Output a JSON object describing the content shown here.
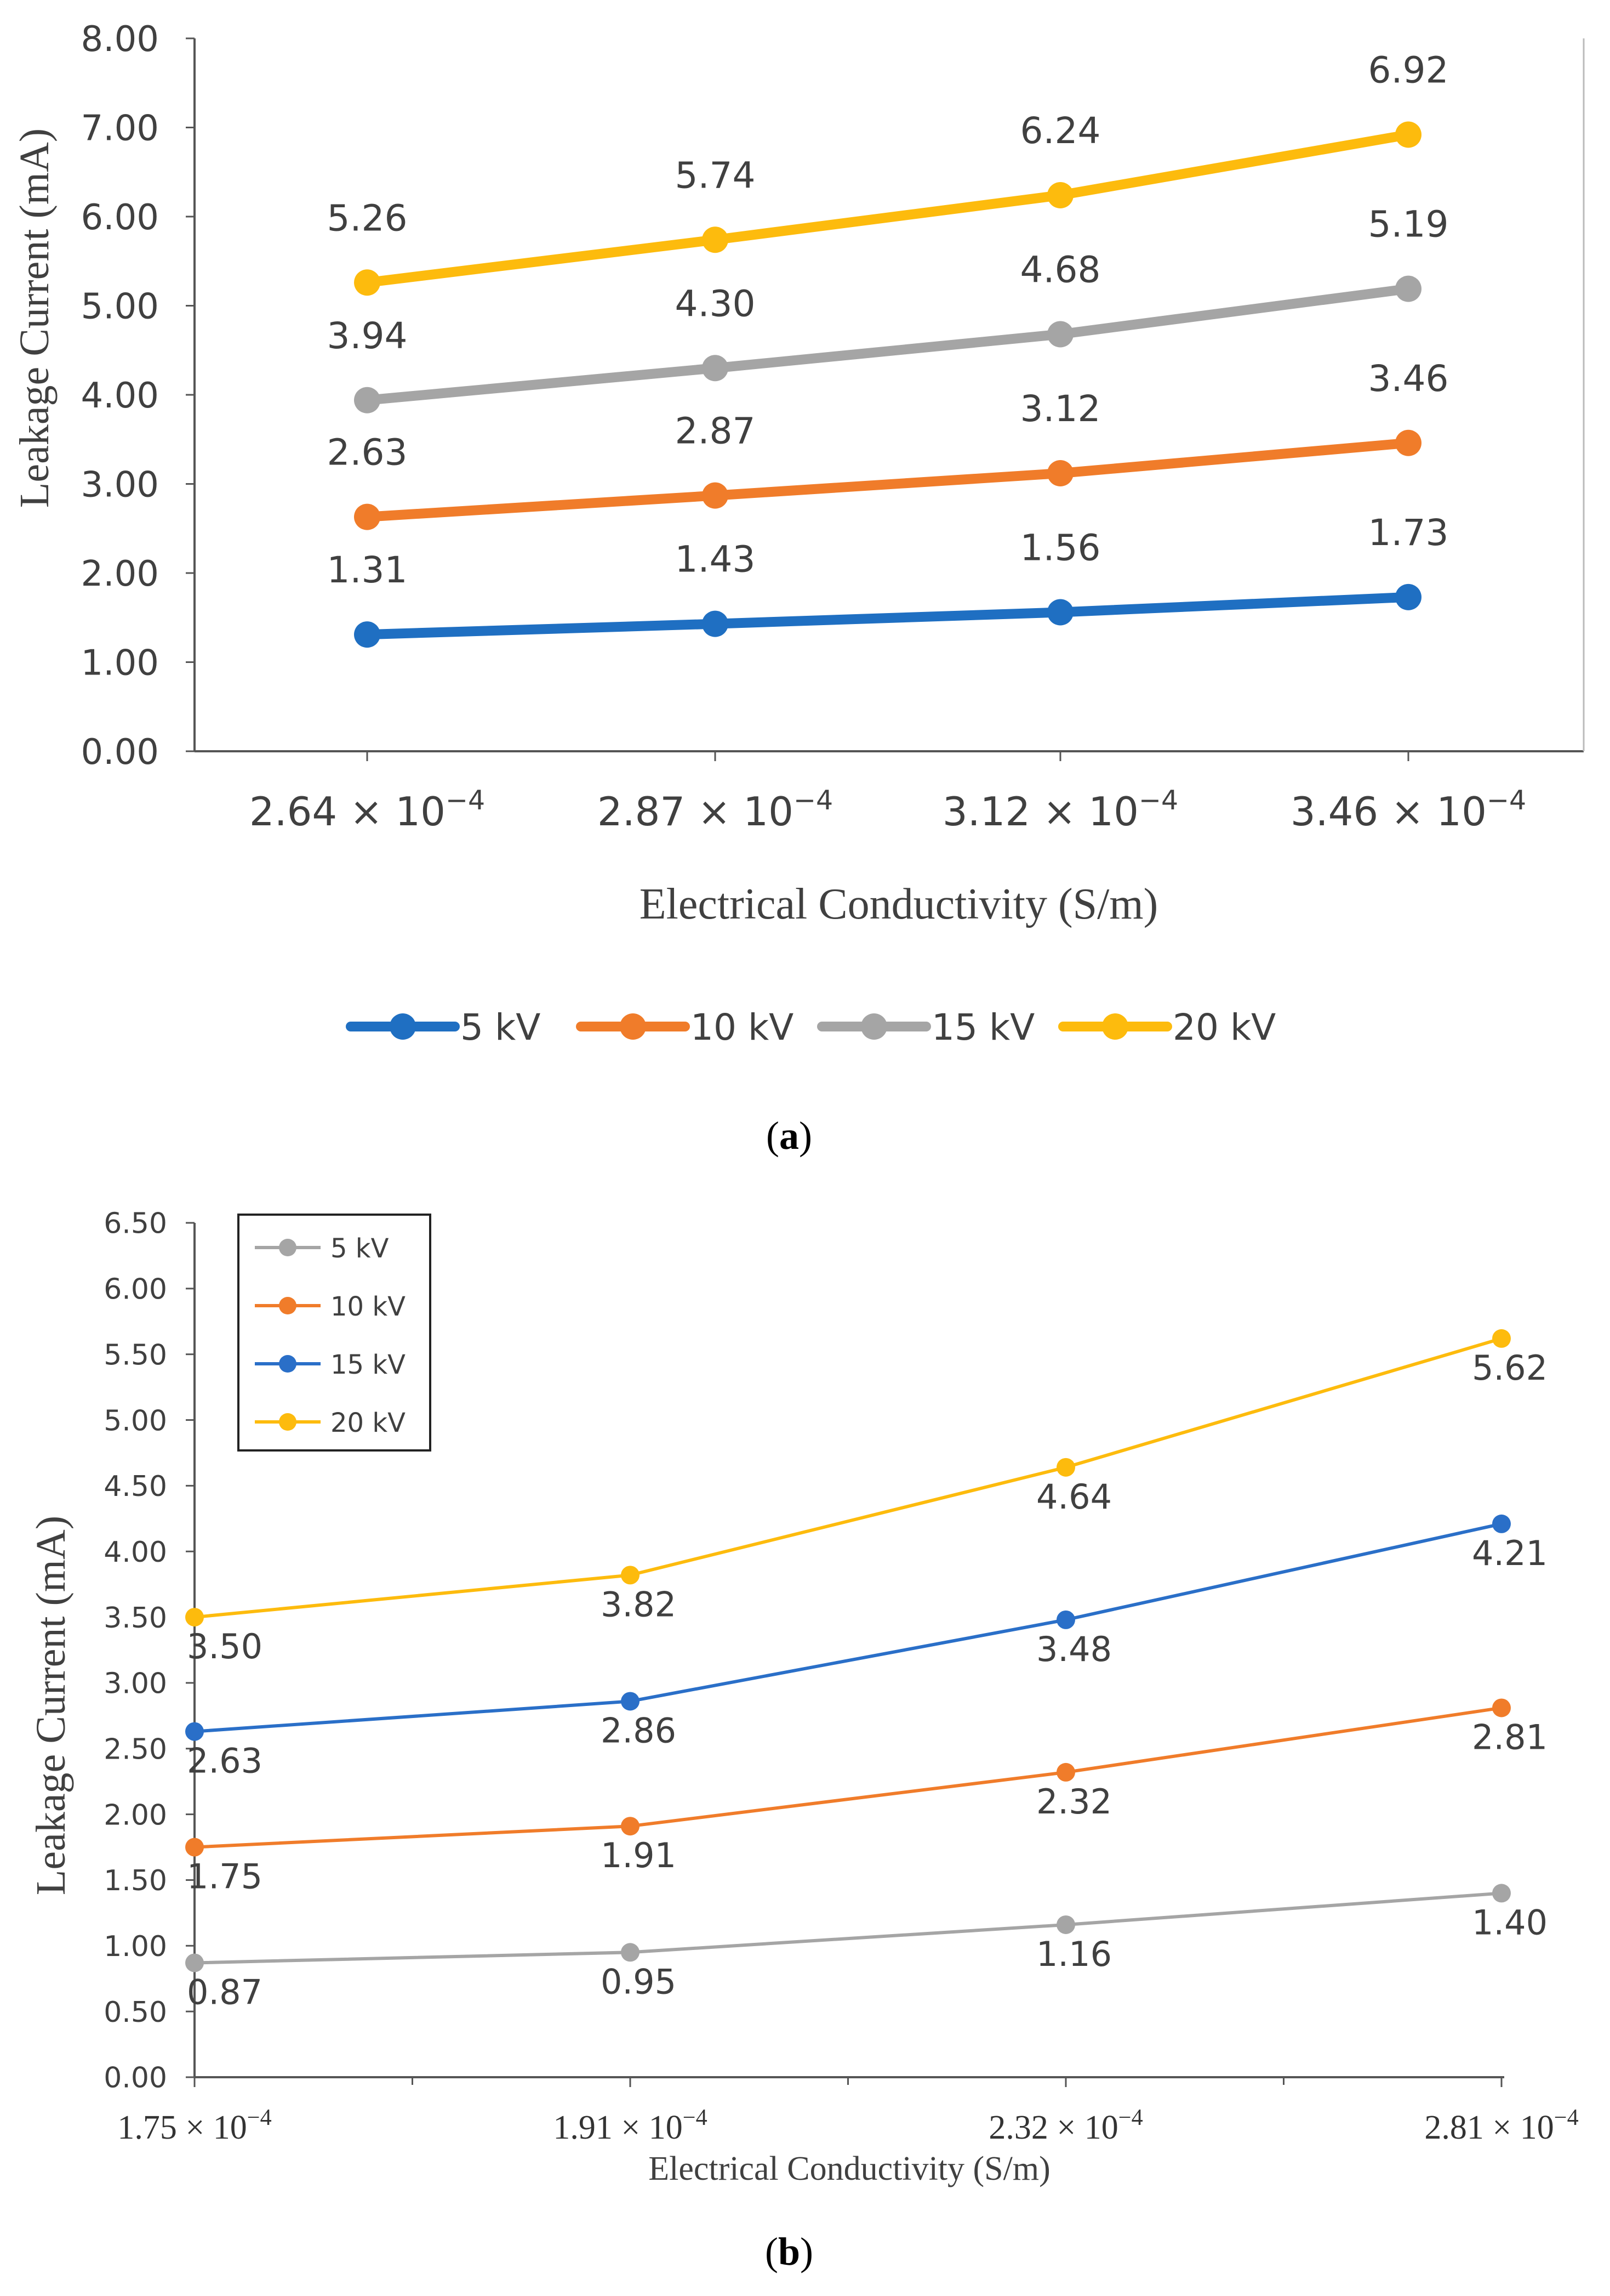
{
  "chart_data": [
    {
      "panel": "a",
      "type": "line",
      "caption": "(a)",
      "xlabel": "Electrical Conductivity (S/m)",
      "ylabel": "Leakage Current (mA)",
      "categories": [
        {
          "mantissa": "2.64",
          "times": "×",
          "base": "10",
          "exp": "−4"
        },
        {
          "mantissa": "2.87",
          "times": "×",
          "base": "10",
          "exp": "−4"
        },
        {
          "mantissa": "3.12",
          "times": "×",
          "base": "10",
          "exp": "−4"
        },
        {
          "mantissa": "3.46",
          "times": "×",
          "base": "10",
          "exp": "−4"
        }
      ],
      "x_values": [
        0.000264,
        0.000287,
        0.000312,
        0.000346
      ],
      "ylim": [
        0,
        8
      ],
      "yticks": [
        "0.00",
        "1.00",
        "2.00",
        "3.00",
        "4.00",
        "5.00",
        "6.00",
        "7.00",
        "8.00"
      ],
      "grid": false,
      "legend_position": "bottom",
      "label_position": "above",
      "series": [
        {
          "name": "5 kV",
          "color": "#1f6fc2",
          "values": [
            1.31,
            1.43,
            1.56,
            1.73
          ],
          "labels": [
            "1.31",
            "1.43",
            "1.56",
            "1.73"
          ]
        },
        {
          "name": "10 kV",
          "color": "#f07c2a",
          "values": [
            2.63,
            2.87,
            3.12,
            3.46
          ],
          "labels": [
            "2.63",
            "2.87",
            "3.12",
            "3.46"
          ]
        },
        {
          "name": "15 kV",
          "color": "#a5a5a5",
          "values": [
            3.94,
            4.3,
            4.68,
            5.19
          ],
          "labels": [
            "3.94",
            "4.30",
            "4.68",
            "5.19"
          ]
        },
        {
          "name": "20 kV",
          "color": "#fdbb0d",
          "values": [
            5.26,
            5.74,
            6.24,
            6.92
          ],
          "labels": [
            "5.26",
            "5.74",
            "6.24",
            "6.92"
          ]
        }
      ]
    },
    {
      "panel": "b",
      "type": "line",
      "caption": "(b)",
      "xlabel": "Electrical Conductivity (S/m)",
      "ylabel": "Leakage Current (mA)",
      "categories": [
        {
          "mantissa": "1.75",
          "times": "×",
          "base": "10",
          "exp": "−4"
        },
        {
          "mantissa": "1.91",
          "times": "×",
          "base": "10",
          "exp": "−4"
        },
        {
          "mantissa": "2.32",
          "times": "×",
          "base": "10",
          "exp": "−4"
        },
        {
          "mantissa": "2.81",
          "times": "×",
          "base": "10",
          "exp": "−4"
        }
      ],
      "x_values": [
        0.000175,
        0.000191,
        0.000232,
        0.000281
      ],
      "ylim": [
        0,
        6.5
      ],
      "yticks": [
        "0.00",
        "0.50",
        "1.00",
        "1.50",
        "2.00",
        "2.50",
        "3.00",
        "3.50",
        "4.00",
        "4.50",
        "5.00",
        "5.50",
        "6.00",
        "6.50"
      ],
      "grid": false,
      "legend_position": "top-left",
      "label_position": "below",
      "series": [
        {
          "name": "5 kV",
          "color": "#a5a5a5",
          "values": [
            0.87,
            0.95,
            1.16,
            1.4
          ],
          "labels": [
            "0.87",
            "0.95",
            "1.16",
            "1.40"
          ]
        },
        {
          "name": "10 kV",
          "color": "#f07c2a",
          "values": [
            1.75,
            1.91,
            2.32,
            2.81
          ],
          "labels": [
            "1.75",
            "1.91",
            "2.32",
            "2.81"
          ]
        },
        {
          "name": "15 kV",
          "color": "#2a6fc8",
          "values": [
            2.63,
            2.86,
            3.48,
            4.21
          ],
          "labels": [
            "2.63",
            "2.86",
            "3.48",
            "4.21"
          ]
        },
        {
          "name": "20 kV",
          "color": "#fdbb0d",
          "values": [
            3.5,
            3.82,
            4.64,
            5.62
          ],
          "labels": [
            "3.50",
            "3.82",
            "4.64",
            "5.62"
          ]
        }
      ]
    }
  ]
}
